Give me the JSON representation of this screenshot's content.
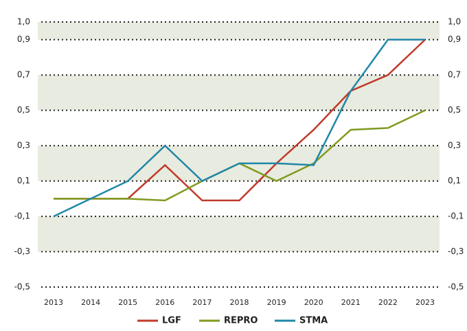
{
  "chart_data": {
    "type": "line",
    "categories": [
      "2013",
      "2014",
      "2015",
      "2016",
      "2017",
      "2018",
      "2019",
      "2020",
      "2021",
      "2022",
      "2023"
    ],
    "series": [
      {
        "name": "LGF",
        "color": "#c0392b",
        "values": [
          0.0,
          0.0,
          0.0,
          0.19,
          -0.01,
          -0.01,
          0.2,
          0.39,
          0.61,
          0.7,
          0.9
        ]
      },
      {
        "name": "REPRO",
        "color": "#7f9a1e",
        "values": [
          0.0,
          0.0,
          0.0,
          -0.01,
          0.1,
          0.2,
          0.1,
          0.2,
          0.39,
          0.4,
          0.5
        ]
      },
      {
        "name": "STMA",
        "color": "#1f87a8",
        "values": [
          -0.1,
          0.0,
          0.1,
          0.3,
          0.1,
          0.2,
          0.2,
          0.19,
          0.61,
          0.9,
          0.9
        ]
      }
    ],
    "ylim": [
      -0.5,
      1.0
    ],
    "yticks": [
      {
        "value": 1.0,
        "label": "1,0"
      },
      {
        "value": 0.9,
        "label": "0,9"
      },
      {
        "value": 0.7,
        "label": "0,7"
      },
      {
        "value": 0.5,
        "label": "0,5"
      },
      {
        "value": 0.3,
        "label": "0,3"
      },
      {
        "value": 0.1,
        "label": "0,1"
      },
      {
        "value": -0.1,
        "label": "-0,1"
      },
      {
        "value": -0.3,
        "label": "-0,3"
      },
      {
        "value": -0.5,
        "label": "-0,5"
      }
    ],
    "grid": true,
    "legend": "bottom"
  }
}
